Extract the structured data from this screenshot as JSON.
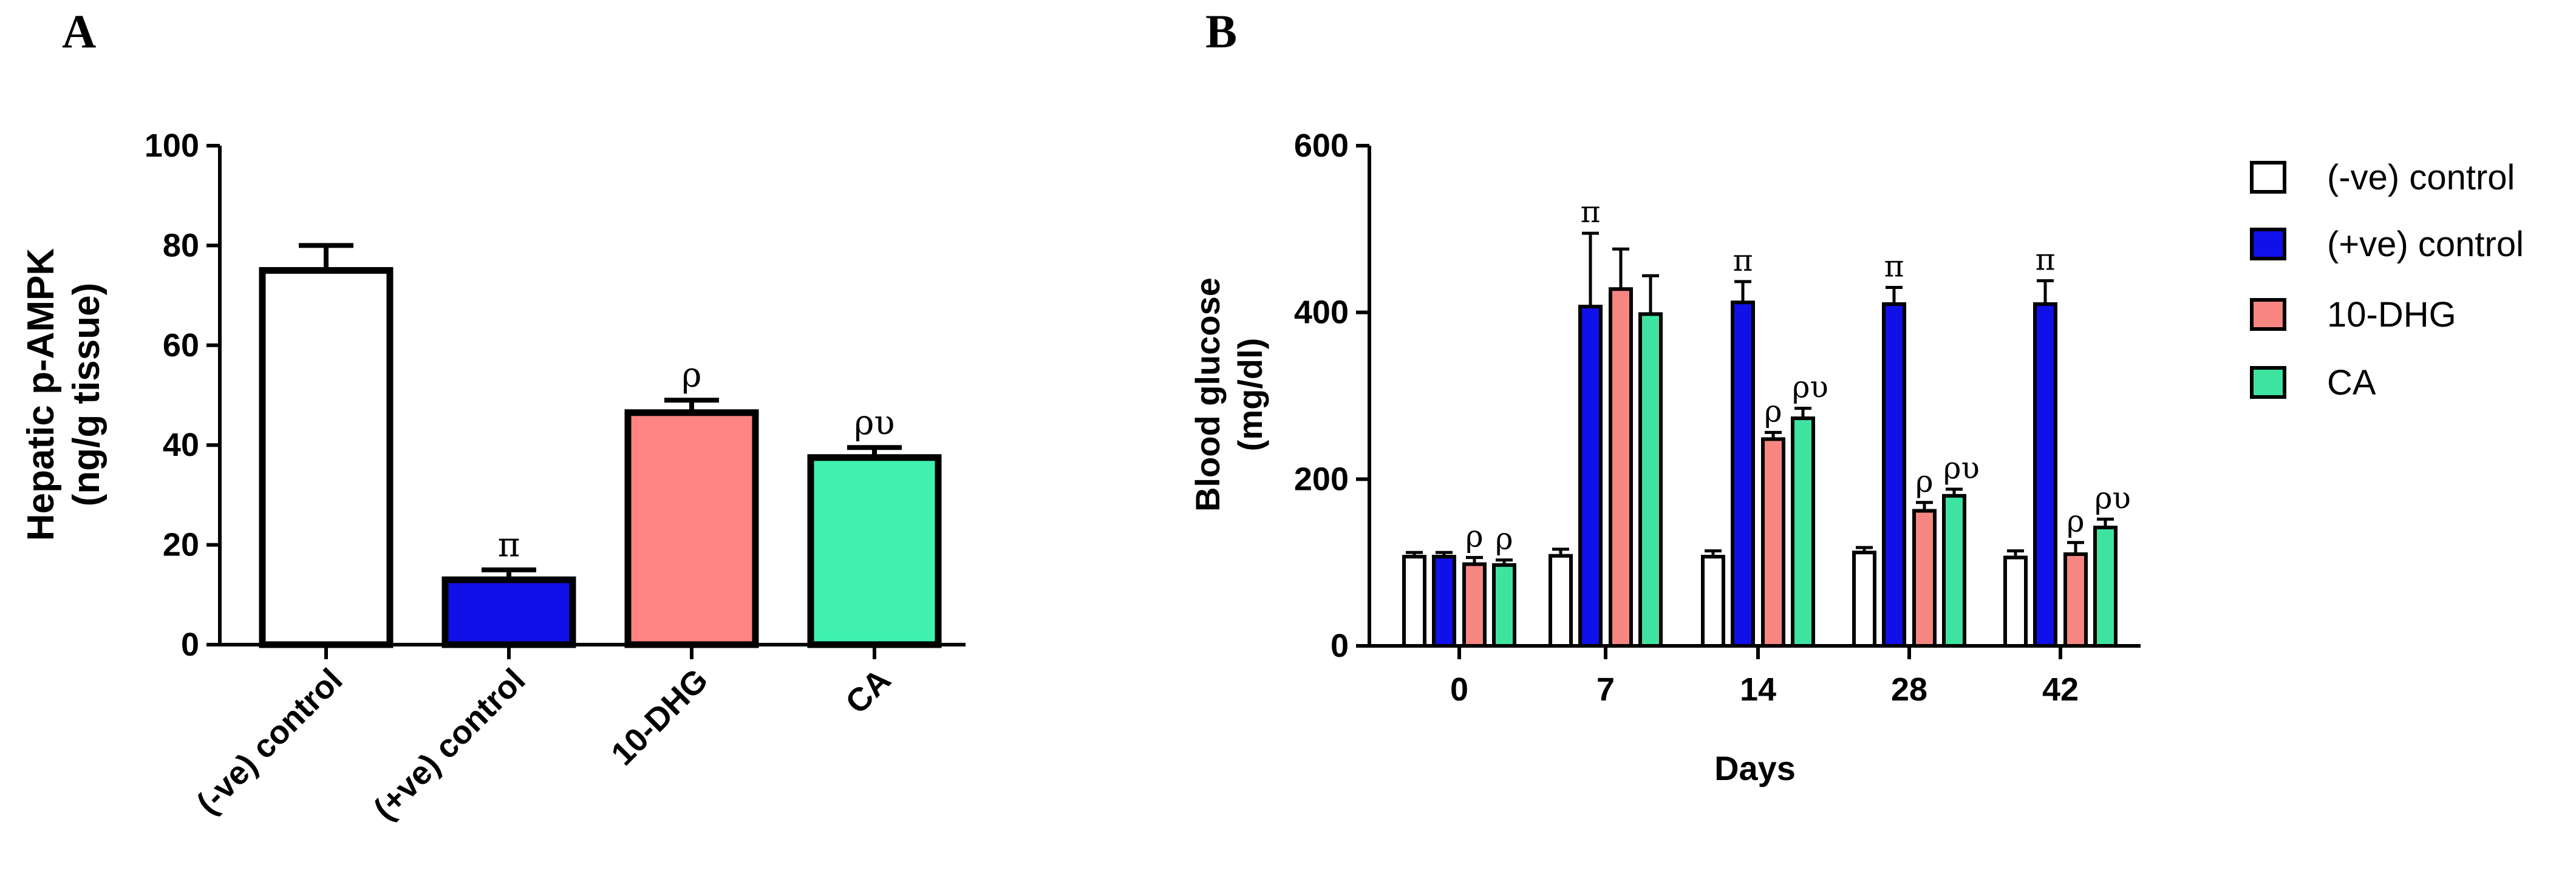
{
  "chart_data": [
    {
      "panel": "A",
      "type": "bar",
      "title": "",
      "xlabel": "",
      "ylabel": "Hepatic p-AMPK",
      "ylabel_unit": "(ng/g tissue)",
      "ylim": [
        0,
        100
      ],
      "yticks": [
        "0",
        "20",
        "40",
        "60",
        "80",
        "100"
      ],
      "categories": [
        "(-ve) control",
        "(+ve) control",
        "10-DHG",
        "CA"
      ],
      "values": [
        75,
        13,
        46.5,
        37.5
      ],
      "errors": [
        5,
        2,
        2.5,
        2
      ],
      "colors": [
        "#ffffff",
        "#1010e8",
        "#fd8483",
        "#3ff0ae"
      ],
      "annotations": [
        "",
        "π",
        "ρ",
        "ρυ"
      ],
      "grid": false
    },
    {
      "panel": "B",
      "type": "bar",
      "title": "",
      "xlabel": "Days",
      "ylabel": "Blood glucose",
      "ylabel_unit": "(mg/dl)",
      "ylim": [
        0,
        600
      ],
      "yticks": [
        "0",
        "200",
        "400",
        "600"
      ],
      "categories": [
        "0",
        "7",
        "14",
        "28",
        "42"
      ],
      "series": [
        {
          "name": "(-ve) control",
          "color": "#ffffff",
          "values": [
            107,
            108,
            107,
            112,
            106
          ],
          "errors": [
            5,
            8,
            7,
            6,
            8
          ],
          "annotations": [
            "",
            "",
            "",
            "",
            ""
          ]
        },
        {
          "name": "(+ve) control",
          "color": "#1010e8",
          "values": [
            107,
            407,
            412,
            410,
            410
          ],
          "errors": [
            5,
            88,
            25,
            20,
            28
          ],
          "annotations": [
            "",
            "π",
            "π",
            "π",
            "π"
          ]
        },
        {
          "name": "10-DHG",
          "color": "#f78683",
          "values": [
            98,
            428,
            248,
            162,
            110
          ],
          "errors": [
            8,
            48,
            8,
            10,
            14
          ],
          "annotations": [
            "ρ",
            "",
            "ρ",
            "ρ",
            "ρ"
          ]
        },
        {
          "name": "CA",
          "color": "#3fe3a0",
          "values": [
            97,
            398,
            273,
            180,
            142
          ],
          "errors": [
            6,
            46,
            12,
            8,
            10
          ],
          "annotations": [
            "ρ",
            "",
            "ρυ",
            "ρυ",
            "ρυ"
          ]
        }
      ],
      "legend_position": "right",
      "grid": false
    }
  ],
  "labels": {
    "panel_a": "A",
    "panel_b": "B"
  }
}
